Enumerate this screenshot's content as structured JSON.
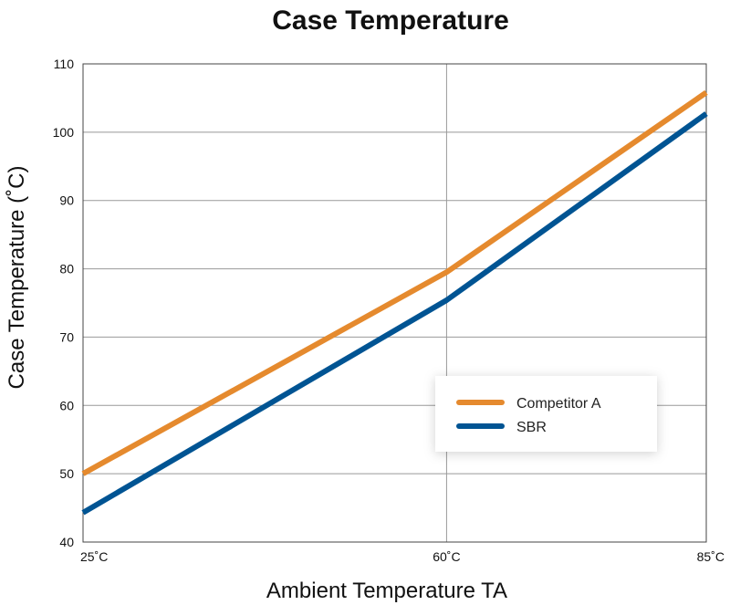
{
  "chart_data": {
    "type": "line",
    "title": "Case Temperature",
    "xlabel": "Ambient Temperature TA",
    "ylabel": "Case Temperature (˚C)",
    "x": [
      25,
      60,
      85
    ],
    "x_tick_labels": [
      "25˚C",
      "60˚C",
      "85˚C"
    ],
    "ylim": [
      40,
      110
    ],
    "y_ticks": [
      40,
      50,
      60,
      70,
      80,
      90,
      100,
      110
    ],
    "grid": true,
    "legend_position": "center-right",
    "series": [
      {
        "name": "Competitor A",
        "color": "#E58A2E",
        "values": [
          50,
          79.5,
          105.8
        ]
      },
      {
        "name": "SBR",
        "color": "#005493",
        "values": [
          44.3,
          75.4,
          102.7
        ]
      }
    ]
  }
}
